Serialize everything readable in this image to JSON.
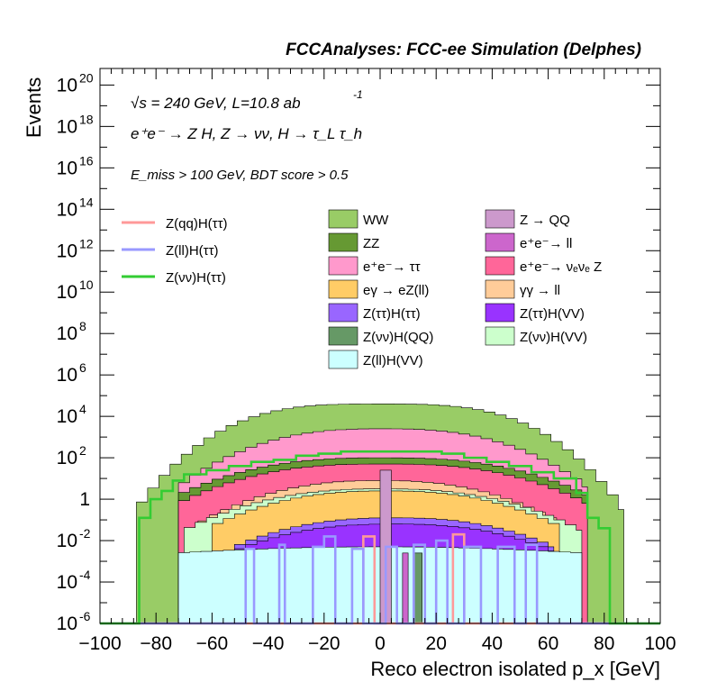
{
  "chart_data": {
    "type": "area",
    "title": "FCCAnalyses: FCC-ee Simulation (Delphes)",
    "annotations": {
      "sqrt_s_label": "√s = 240 GeV, L=10.8 ab",
      "lumi_exponent": "-1",
      "process_label": "e⁺e⁻ → Z H, Z → νν, H → τ_L τ_h",
      "cuts_label": "E_miss > 100 GeV, BDT score > 0.5"
    },
    "xlabel": "Reco electron isolated p_x [GeV]",
    "ylabel": "Events",
    "xlim": [
      -100,
      100
    ],
    "ylim_log10": [
      -6,
      20.8
    ],
    "y_scale": "log",
    "x_ticks": [
      "−100",
      "−80",
      "−60",
      "−40",
      "−20",
      "0",
      "20",
      "40",
      "60",
      "80",
      "100"
    ],
    "y_ticks": [
      {
        "mantissa": "10",
        "exp": "20",
        "value": 20
      },
      {
        "mantissa": "10",
        "exp": "18",
        "value": 18
      },
      {
        "mantissa": "10",
        "exp": "16",
        "value": 16
      },
      {
        "mantissa": "10",
        "exp": "14",
        "value": 14
      },
      {
        "mantissa": "10",
        "exp": "12",
        "value": 12
      },
      {
        "mantissa": "10",
        "exp": "10",
        "value": 10
      },
      {
        "mantissa": "10",
        "exp": "8",
        "value": 8
      },
      {
        "mantissa": "10",
        "exp": "6",
        "value": 6
      },
      {
        "mantissa": "10",
        "exp": "4",
        "value": 4
      },
      {
        "mantissa": "10",
        "exp": "2",
        "value": 2
      },
      {
        "mantissa": "1",
        "exp": "",
        "value": 0
      },
      {
        "mantissa": "10",
        "exp": "-2",
        "value": -2
      },
      {
        "mantissa": "10",
        "exp": "-4",
        "value": -4
      },
      {
        "mantissa": "10",
        "exp": "-6",
        "value": -6
      }
    ],
    "stack_profiles_log10": [
      {
        "name": "WW",
        "color": "#99cc66",
        "xmin": -87,
        "xmax": 87,
        "peak": 4.6,
        "edge": -0.5,
        "shape": 1.6
      },
      {
        "name": "e⁺e⁻→ ττ",
        "color": "#ff99cc",
        "xmin": -72,
        "xmax": 74,
        "peak": 3.4,
        "edge": 0.6,
        "shape": 1.3
      },
      {
        "name": "ZZ",
        "color": "#669933",
        "xmin": -72,
        "xmax": 74,
        "peak": 2.0,
        "edge": 0.2,
        "shape": 1.3
      },
      {
        "name": "e⁺e⁻→ ν_e ν_e Z",
        "color": "#ff6699",
        "xmin": -72,
        "xmax": 74,
        "peak": 1.7,
        "edge": -0.2,
        "shape": 1.3
      },
      {
        "name": "γγ → ll",
        "color": "#ffcc99",
        "xmin": -65,
        "xmax": 65,
        "peak": 0.9,
        "edge": -1.2,
        "shape": 1.2
      },
      {
        "name": "Z(νν)H(VV)",
        "color": "#ccffcc",
        "xmin": -70,
        "xmax": 72,
        "peak": 0.5,
        "edge": -1.5,
        "shape": 1.2
      },
      {
        "name": "eγ → eZ(ll)",
        "color": "#ffcc66",
        "xmin": -60,
        "xmax": 64,
        "peak": 0.4,
        "edge": -1.3,
        "shape": 1.2
      },
      {
        "name": "Z(ττ)H(ττ)",
        "color": "#9966ff",
        "xmin": -52,
        "xmax": 62,
        "peak": -0.9,
        "edge": -2.3,
        "shape": 1.2
      },
      {
        "name": "Z(ττ)H(VV)",
        "color": "#9933ff",
        "xmin": -52,
        "xmax": 62,
        "peak": -1.2,
        "edge": -2.5,
        "shape": 1.2
      },
      {
        "name": "Z(ll)H(VV)",
        "color": "#ccffff",
        "xmin": -72,
        "xmax": 72,
        "peak": -2.3,
        "edge": -2.6,
        "shape": 1.0
      }
    ],
    "spike_bins": [
      {
        "name": "Z → QQ",
        "color": "#cc99cc",
        "x0": 0,
        "x1": 4,
        "top_log10": 1.4
      },
      {
        "name": "Z(νν)H(QQ)",
        "color": "#669966",
        "x0": 12,
        "x1": 15,
        "top_log10": -2.6
      },
      {
        "name": "e⁺e⁻→ ll",
        "color": "#cc66cc",
        "x0": 8,
        "x1": 10,
        "top_log10": -2.6
      }
    ],
    "lines": [
      {
        "name": "Z(qq)H(ττ)",
        "color": "#ff9999",
        "points": [
          [
            -100,
            -6
          ],
          [
            -6,
            -6
          ],
          [
            -6,
            -1.8
          ],
          [
            -2,
            -1.8
          ],
          [
            -2,
            -6
          ],
          [
            26,
            -6
          ],
          [
            26,
            -1.7
          ],
          [
            30,
            -1.7
          ],
          [
            30,
            -6
          ],
          [
            100,
            -6
          ]
        ]
      },
      {
        "name": "Z(ll)H(ττ)",
        "color": "#9999ff",
        "points": [
          [
            -100,
            -6
          ],
          [
            -48,
            -6
          ],
          [
            -48,
            -2.4
          ],
          [
            -45,
            -2.4
          ],
          [
            -45,
            -6
          ],
          [
            -36,
            -6
          ],
          [
            -36,
            -2.2
          ],
          [
            -34,
            -2.2
          ],
          [
            -34,
            -6
          ],
          [
            -24,
            -6
          ],
          [
            -24,
            -2.3
          ],
          [
            -20,
            -2.3
          ],
          [
            -20,
            -1.8
          ],
          [
            -16,
            -1.8
          ],
          [
            -16,
            -6
          ],
          [
            -10,
            -6
          ],
          [
            -10,
            -2.4
          ],
          [
            -6,
            -2.4
          ],
          [
            -6,
            -6
          ],
          [
            2,
            -6
          ],
          [
            2,
            -2.3
          ],
          [
            6,
            -2.3
          ],
          [
            6,
            -6
          ],
          [
            12,
            -6
          ],
          [
            12,
            -2.2
          ],
          [
            16,
            -2.2
          ],
          [
            16,
            -6
          ],
          [
            20,
            -6
          ],
          [
            20,
            -2.0
          ],
          [
            24,
            -2.0
          ],
          [
            24,
            -6
          ],
          [
            30,
            -6
          ],
          [
            30,
            -2.3
          ],
          [
            36,
            -2.3
          ],
          [
            36,
            -6
          ],
          [
            42,
            -6
          ],
          [
            42,
            -2.3
          ],
          [
            48,
            -2.3
          ],
          [
            48,
            -6
          ],
          [
            52,
            -6
          ],
          [
            52,
            -2.2
          ],
          [
            56,
            -2.2
          ],
          [
            56,
            -6
          ],
          [
            100,
            -6
          ]
        ]
      },
      {
        "name": "Z(νν)H(ττ)",
        "color": "#33cc33",
        "points": [
          [
            -100,
            -6
          ],
          [
            -86,
            -6
          ],
          [
            -86,
            -0.9
          ],
          [
            -82,
            -0.9
          ],
          [
            -82,
            0.0
          ],
          [
            -78,
            0.0
          ],
          [
            -78,
            0.4
          ],
          [
            -74,
            0.4
          ],
          [
            -74,
            0.9
          ],
          [
            -70,
            0.9
          ],
          [
            -70,
            1.2
          ],
          [
            -62,
            1.2
          ],
          [
            -62,
            1.4
          ],
          [
            -54,
            1.4
          ],
          [
            -54,
            1.6
          ],
          [
            -46,
            1.6
          ],
          [
            -46,
            1.8
          ],
          [
            -38,
            1.8
          ],
          [
            -38,
            1.9
          ],
          [
            -30,
            1.9
          ],
          [
            -30,
            2.1
          ],
          [
            -22,
            2.1
          ],
          [
            -22,
            2.2
          ],
          [
            -14,
            2.2
          ],
          [
            -14,
            2.3
          ],
          [
            22,
            2.3
          ],
          [
            22,
            2.2
          ],
          [
            30,
            2.2
          ],
          [
            30,
            2.0
          ],
          [
            38,
            2.0
          ],
          [
            38,
            1.8
          ],
          [
            46,
            1.8
          ],
          [
            46,
            1.6
          ],
          [
            54,
            1.6
          ],
          [
            54,
            1.3
          ],
          [
            62,
            1.3
          ],
          [
            62,
            1.0
          ],
          [
            70,
            1.0
          ],
          [
            70,
            0.3
          ],
          [
            74,
            0.3
          ],
          [
            74,
            -0.9
          ],
          [
            78,
            -0.9
          ],
          [
            78,
            -1.4
          ],
          [
            82,
            -1.4
          ],
          [
            82,
            -6
          ],
          [
            100,
            -6
          ]
        ]
      }
    ],
    "legend": {
      "placement": "top",
      "lines": [
        {
          "label": "Z(qq)H(ττ)",
          "color": "#ff9999"
        },
        {
          "label": "Z(ll)H(ττ)",
          "color": "#9999ff"
        },
        {
          "label": "Z(νν)H(ττ)",
          "color": "#33cc33"
        }
      ],
      "fills": [
        {
          "label": "WW",
          "color": "#99cc66"
        },
        {
          "label": "Z → QQ",
          "color": "#cc99cc"
        },
        {
          "label": "ZZ",
          "color": "#669933"
        },
        {
          "label": "e⁺e⁻→ ll",
          "color": "#cc66cc"
        },
        {
          "label": "e⁺e⁻→ ττ",
          "color": "#ff99cc"
        },
        {
          "label": "e⁺e⁻→ νₑνₑ Z",
          "color": "#ff6699"
        },
        {
          "label": "eγ → eZ(ll)",
          "color": "#ffcc66"
        },
        {
          "label": "γγ → ll",
          "color": "#ffcc99"
        },
        {
          "label": "Z(ττ)H(ττ)",
          "color": "#9966ff"
        },
        {
          "label": "Z(ττ)H(VV)",
          "color": "#9933ff"
        },
        {
          "label": "Z(νν)H(QQ)",
          "color": "#669966"
        },
        {
          "label": "Z(νν)H(VV)",
          "color": "#ccffcc"
        },
        {
          "label": "Z(ll)H(VV)",
          "color": "#ccffff"
        }
      ]
    }
  }
}
